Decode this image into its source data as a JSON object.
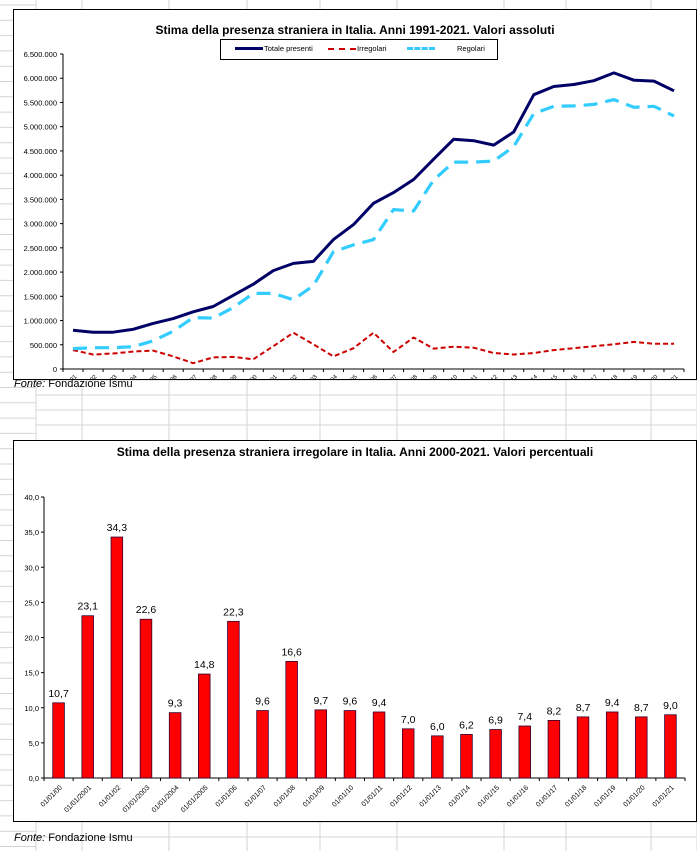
{
  "page": {
    "source_prefix": "Fonte:",
    "source_name": " Fondazione Ismu"
  },
  "chart_data": [
    {
      "type": "line",
      "title": "Stima della presenza straniera in Italia. Anni 1991-2021. Valori assoluti",
      "xlabel": "",
      "ylabel": "",
      "ylim": [
        0,
        6500000
      ],
      "yticks": [
        0,
        500000,
        1000000,
        1500000,
        2000000,
        2500000,
        3000000,
        3500000,
        4000000,
        4500000,
        5000000,
        5500000,
        6000000,
        6500000
      ],
      "ytick_labels": [
        "0",
        "500.000",
        "1.000.000",
        "1.500.000",
        "2.000.000",
        "2.500.000",
        "3.000.000",
        "3.500.000",
        "4.000.000",
        "4.500.000",
        "5.000.000",
        "5.500.000",
        "6.000.000",
        "6.500.000"
      ],
      "grid": false,
      "legend_position": "top-center",
      "categories": [
        "01/01/1991",
        "01/01/1992",
        "01/01/1993",
        "01/01/1994",
        "01/01/95",
        "01/01/1996",
        "01/01/97",
        "01/01/1998",
        "01/01/1999",
        "01/01/00",
        "01/01/2001",
        "01/01/02",
        "01/01/2003",
        "01/01/2004",
        "01/01/2005",
        "01/01/06",
        "01/01/07",
        "01/01/08",
        "01/01/09",
        "01/01/10",
        "01/01/11",
        "01/01/12",
        "01/01/13",
        "01/01/14",
        "01/01/15",
        "01/01/16",
        "01/01/17",
        "01/01/18",
        "01/01/19",
        "01/01/20",
        "01/01/21"
      ],
      "series": [
        {
          "name": "Totale presenti",
          "color": "#000066",
          "style": "solid",
          "values": [
            800000,
            760000,
            760000,
            820000,
            940000,
            1040000,
            1180000,
            1290000,
            1520000,
            1750000,
            2030000,
            2180000,
            2220000,
            2670000,
            2980000,
            3420000,
            3640000,
            3910000,
            4330000,
            4740000,
            4710000,
            4620000,
            4890000,
            5660000,
            5830000,
            5870000,
            5950000,
            6110000,
            5960000,
            5940000,
            5740000
          ]
        },
        {
          "name": "Irregolari",
          "color": "#cc0000",
          "style": "dashed",
          "values": [
            390000,
            300000,
            320000,
            360000,
            380000,
            260000,
            120000,
            240000,
            250000,
            200000,
            470000,
            750000,
            510000,
            260000,
            430000,
            750000,
            350000,
            650000,
            420000,
            460000,
            440000,
            330000,
            300000,
            330000,
            390000,
            430000,
            470000,
            510000,
            560000,
            520000,
            520000
          ]
        },
        {
          "name": "Regolari",
          "color": "#33ccff",
          "style": "dashed",
          "values": [
            420000,
            440000,
            440000,
            460000,
            580000,
            780000,
            1060000,
            1050000,
            1270000,
            1560000,
            1560000,
            1430000,
            1720000,
            2420000,
            2560000,
            2670000,
            3290000,
            3260000,
            3900000,
            4270000,
            4270000,
            4290000,
            4590000,
            5270000,
            5420000,
            5430000,
            5460000,
            5560000,
            5400000,
            5420000,
            5220000
          ]
        }
      ]
    },
    {
      "type": "bar",
      "title": "Stima della presenza straniera irregolare in Italia. Anni 2000-2021. Valori percentuali",
      "xlabel": "",
      "ylabel": "",
      "ylim": [
        0,
        40
      ],
      "yticks": [
        0,
        5,
        10,
        15,
        20,
        25,
        30,
        35,
        40
      ],
      "ytick_labels": [
        "0,0",
        "5,0",
        "10,0",
        "15,0",
        "20,0",
        "25,0",
        "30,0",
        "35,0",
        "40,0"
      ],
      "grid": false,
      "bar_color": "#ff0000",
      "bar_edge_color": "#330033",
      "categories": [
        "01/01/00",
        "01/01/2001",
        "01/01/02",
        "01/01/2003",
        "01/01/2004",
        "01/01/2005",
        "01/01/06",
        "01/01/07",
        "01/01/08",
        "01/01/09",
        "01/01/10",
        "01/01/11",
        "01/01/12",
        "01/01/13",
        "01/01/14",
        "01/01/15",
        "01/01/16",
        "01/01/17",
        "01/01/18",
        "01/01/19",
        "01/01/20",
        "01/01/21"
      ],
      "values": [
        10.7,
        23.1,
        34.3,
        22.6,
        9.3,
        14.8,
        22.3,
        9.6,
        16.6,
        9.7,
        9.6,
        9.4,
        7.0,
        6.0,
        6.2,
        6.9,
        7.4,
        8.2,
        8.7,
        9.4,
        8.7,
        9.0
      ],
      "value_labels": [
        "10,7",
        "23,1",
        "34,3",
        "22,6",
        "9,3",
        "14,8",
        "22,3",
        "9,6",
        "16,6",
        "9,7",
        "9,6",
        "9,4",
        "7,0",
        "6,0",
        "6,2",
        "6,9",
        "7,4",
        "8,2",
        "8,7",
        "9,4",
        "8,7",
        "9,0"
      ]
    }
  ]
}
